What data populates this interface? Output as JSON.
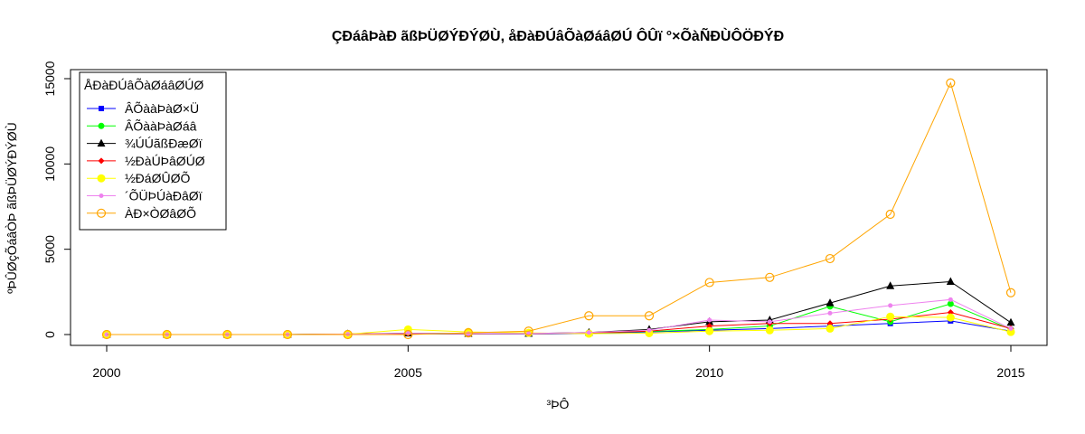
{
  "chart_data": {
    "type": "line",
    "title": "ÇÐáâÞàÐ ãßÞÜØÝÐÝØÙ, åÐàÐÚâÕàØáâØÚ ÔÛï °×ÕàÑÐÙÔÖÐÝÐ",
    "xlabel": "³ÞÔ",
    "ylabel": "ºÞÛØçÕáâÒÞ ãßÞÜØÝÐÝØÙ",
    "x": [
      2000,
      2001,
      2002,
      2003,
      2004,
      2005,
      2006,
      2007,
      2008,
      2009,
      2010,
      2011,
      2012,
      2013,
      2014,
      2015
    ],
    "xlim": [
      2000,
      2015
    ],
    "ylim": [
      0,
      15000
    ],
    "x_ticks": [
      "2000",
      "2005",
      "2010",
      "2015"
    ],
    "y_ticks": [
      "0",
      "5000",
      "10000",
      "15000"
    ],
    "grid": false,
    "legend": {
      "title": "ÅÐàÐÚâÕàØáâØÚØ",
      "placement": "top-left"
    },
    "series": [
      {
        "name": "ÂÕààÞàØ×Ü",
        "color": "#0000ff",
        "marker": "square",
        "values": [
          0,
          0,
          0,
          0,
          20,
          50,
          30,
          40,
          60,
          150,
          250,
          350,
          500,
          650,
          800,
          200
        ]
      },
      {
        "name": "ÂÕààÞàØáâ",
        "color": "#00ff00",
        "marker": "circle-filled",
        "values": [
          0,
          0,
          0,
          0,
          20,
          60,
          40,
          50,
          100,
          180,
          300,
          500,
          1650,
          750,
          1800,
          300
        ]
      },
      {
        "name": "¾ÚÚãßÐæØï",
        "color": "#000000",
        "marker": "triangle",
        "values": [
          0,
          0,
          0,
          0,
          30,
          80,
          50,
          60,
          120,
          300,
          750,
          850,
          1850,
          2850,
          3100,
          700
        ]
      },
      {
        "name": "½ÐàÚÞâØÚØ",
        "color": "#ff0000",
        "marker": "diamond",
        "values": [
          0,
          0,
          0,
          0,
          30,
          60,
          40,
          50,
          100,
          200,
          500,
          650,
          650,
          900,
          1300,
          350
        ]
      },
      {
        "name": "½ÐáØÛØÕ",
        "color": "#ffff00",
        "marker": "circle-filled-large",
        "values": [
          0,
          0,
          0,
          0,
          20,
          300,
          150,
          100,
          50,
          80,
          200,
          250,
          350,
          1050,
          1000,
          150
        ]
      },
      {
        "name": "´ÕÜÞÚàÐâØï",
        "color": "#ee82ee",
        "marker": "circle-small",
        "values": [
          0,
          0,
          0,
          0,
          20,
          70,
          50,
          60,
          120,
          250,
          850,
          750,
          1250,
          1700,
          2050,
          350
        ]
      },
      {
        "name": "ÀÐ×ÒØâØÕ",
        "color": "#ffa500",
        "marker": "circle-open",
        "values": [
          0,
          0,
          0,
          0,
          0,
          0,
          100,
          200,
          1100,
          1100,
          3050,
          3350,
          4450,
          7050,
          14750,
          2450
        ]
      }
    ]
  }
}
